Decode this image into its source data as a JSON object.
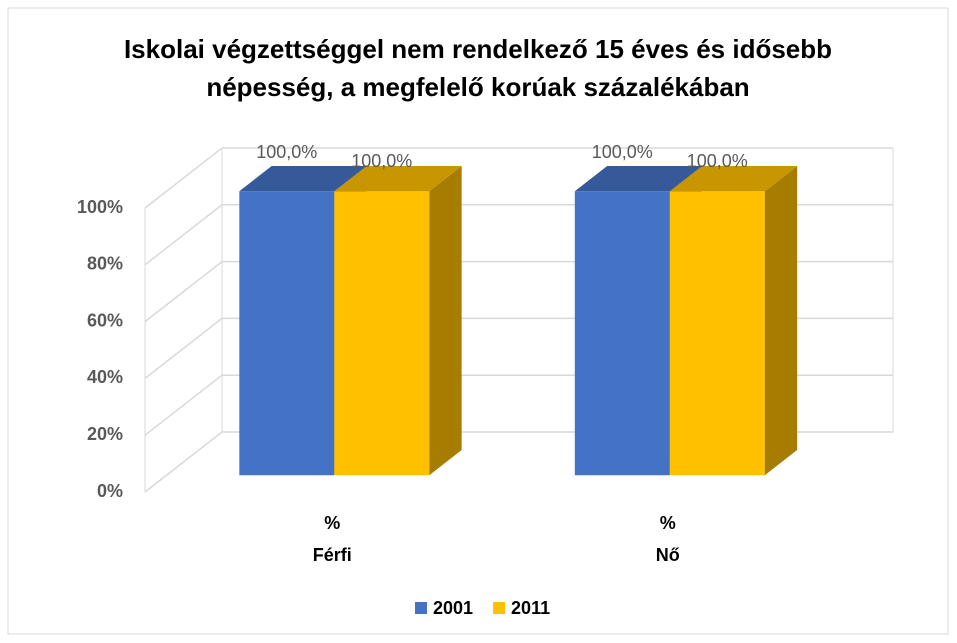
{
  "chart_data": {
    "type": "bar3d",
    "title": "Iskolai végzettséggel nem rendelkező 15 éves és idősebb népesség, a megfelelő korúak százalékában",
    "categories": [
      [
        "%",
        "Férfi"
      ],
      [
        "%",
        "Nő"
      ]
    ],
    "series": [
      {
        "name": "2001",
        "color": "#4472c4",
        "values": [
          100,
          100
        ],
        "value_labels": [
          "100,0%",
          "100,0%"
        ]
      },
      {
        "name": "2011",
        "color": "#ffc000",
        "values": [
          100,
          100
        ],
        "value_labels": [
          "100,0%",
          "100,0%"
        ]
      }
    ],
    "ylim": [
      0,
      100
    ],
    "yticks": [
      {
        "value": 0,
        "label": "0%"
      },
      {
        "value": 20,
        "label": "20%"
      },
      {
        "value": 40,
        "label": "40%"
      },
      {
        "value": 60,
        "label": "60%"
      },
      {
        "value": 80,
        "label": "80%"
      },
      {
        "value": 100,
        "label": "100%"
      }
    ],
    "grid": true,
    "legend": "bottom"
  }
}
